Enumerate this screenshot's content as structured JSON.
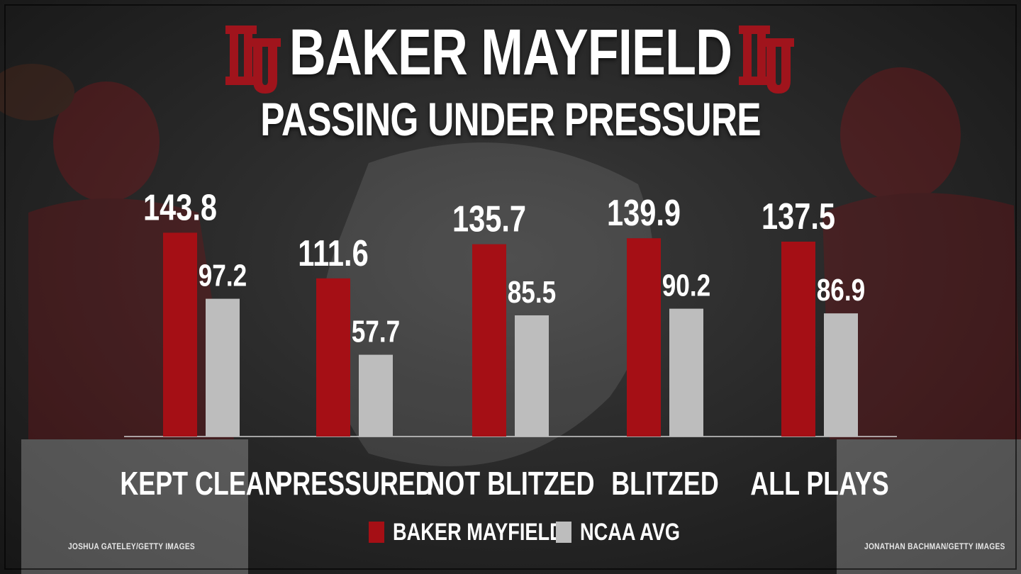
{
  "header": {
    "title": "BAKER MAYFIELD",
    "subtitle": "PASSING UNDER PRESSURE",
    "logo_left": "ou-logo",
    "logo_right": "ou-logo"
  },
  "colors": {
    "mayfield": "#a50f15",
    "ncaa": "#bdbdbd",
    "logo": "#a0141c",
    "baseline": "#cfcfcf"
  },
  "chart_data": {
    "type": "bar",
    "title": "BAKER MAYFIELD",
    "subtitle": "PASSING UNDER PRESSURE",
    "categories": [
      "KEPT CLEAN",
      "PRESSURED",
      "NOT BLITZED",
      "BLITZED",
      "ALL PLAYS"
    ],
    "series": [
      {
        "name": "BAKER MAYFIELD",
        "values": [
          143.8,
          111.6,
          135.7,
          139.9,
          137.5
        ],
        "labels": [
          "143.8",
          "111.6",
          "135.7",
          "139.9",
          "137.5"
        ]
      },
      {
        "name": "NCAA AVG",
        "values": [
          97.2,
          57.7,
          85.5,
          90.2,
          86.9
        ],
        "labels": [
          "97.2",
          "57.7",
          "85.5",
          "90.2",
          "86.9"
        ]
      }
    ],
    "xlabel": "",
    "ylabel": "",
    "ylim": [
      0,
      155
    ],
    "grid": false,
    "legend": "bottom",
    "data_labels": true
  },
  "legend": {
    "mayfield_label": "BAKER MAYFIELD",
    "ncaa_label": "NCAA AVG"
  },
  "credits": {
    "left": "JOSHUA GATELEY/GETTY IMAGES",
    "right": "JONATHAN BACHMAN/GETTY IMAGES"
  }
}
